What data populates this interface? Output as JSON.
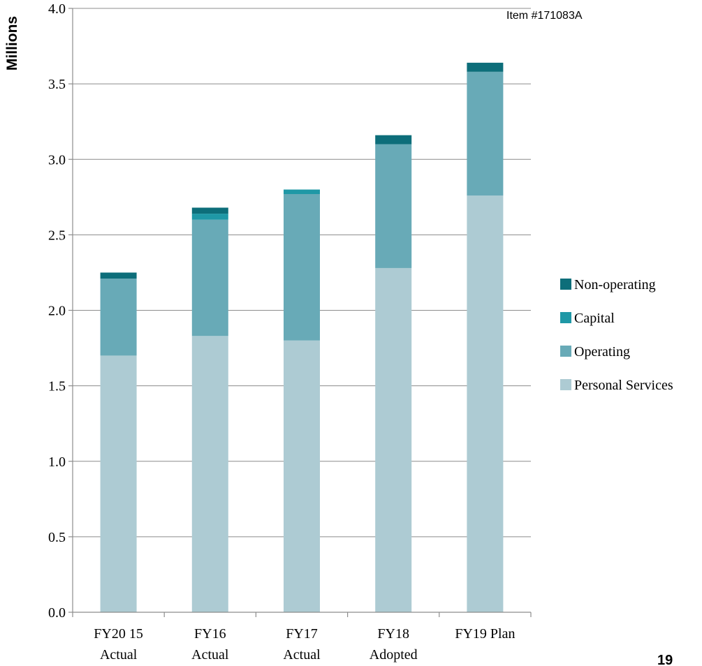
{
  "header": {
    "item_label": "Item #171083A"
  },
  "footer": {
    "page_number": "19"
  },
  "chart_data": {
    "type": "bar",
    "stacked": true,
    "ylabel": "Millions",
    "ylim": [
      0,
      4.0
    ],
    "yticks": [
      "0.0",
      "0.5",
      "1.0",
      "1.5",
      "2.0",
      "2.5",
      "3.0",
      "3.5",
      "4.0"
    ],
    "ytick_values": [
      0,
      0.5,
      1.0,
      1.5,
      2.0,
      2.5,
      3.0,
      3.5,
      4.0
    ],
    "categories": [
      [
        "FY20 15",
        "Actual"
      ],
      [
        "FY16",
        "Actual"
      ],
      [
        "FY17",
        "Actual"
      ],
      [
        "FY18",
        "Adopted"
      ],
      [
        "FY19 Plan"
      ]
    ],
    "grid": "horizontal",
    "legend_position": "right",
    "series": [
      {
        "name": "Personal Services",
        "color": "#adcbd3",
        "values": [
          1.7,
          1.83,
          1.8,
          2.28,
          2.76
        ]
      },
      {
        "name": "Operating",
        "color": "#68aab7",
        "values": [
          0.51,
          0.77,
          0.97,
          0.82,
          0.82
        ]
      },
      {
        "name": "Capital",
        "color": "#1f98a6",
        "values": [
          0.0,
          0.04,
          0.03,
          0.0,
          0.0
        ]
      },
      {
        "name": "Non-operating",
        "color": "#0d6e7a",
        "values": [
          0.04,
          0.04,
          0.0,
          0.06,
          0.06
        ]
      }
    ]
  }
}
